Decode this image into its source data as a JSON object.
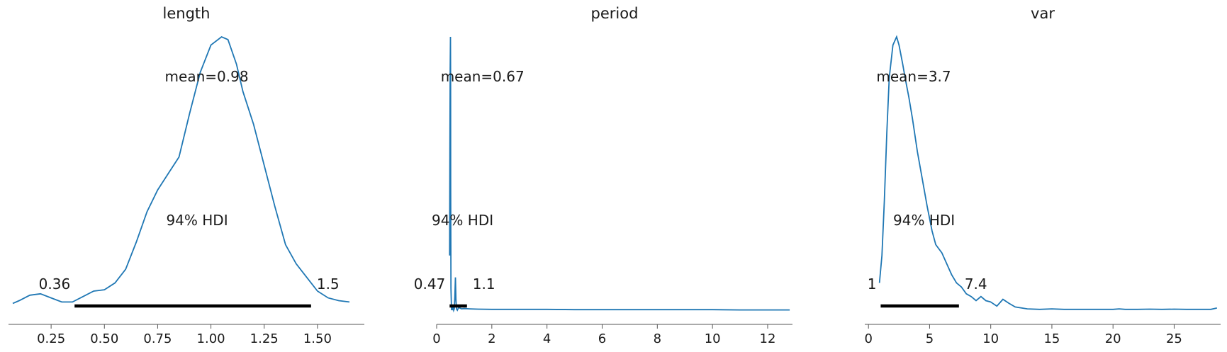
{
  "chart_data": [
    {
      "type": "line",
      "title": "length",
      "xlim": [
        0.05,
        1.72
      ],
      "ylim": [
        0,
        1.0
      ],
      "x_ticks": [
        0.25,
        0.5,
        0.75,
        1.0,
        1.25,
        1.5
      ],
      "x_tick_labels": [
        "0.25",
        "0.50",
        "0.75",
        "1.00",
        "1.25",
        "1.50"
      ],
      "series": [
        {
          "x": [
            0.07,
            0.1,
            0.15,
            0.2,
            0.25,
            0.3,
            0.35,
            0.4,
            0.45,
            0.5,
            0.55,
            0.6,
            0.65,
            0.7,
            0.75,
            0.8,
            0.85,
            0.9,
            0.95,
            1.0,
            1.05,
            1.08,
            1.12,
            1.15,
            1.2,
            1.25,
            1.3,
            1.35,
            1.4,
            1.45,
            1.5,
            1.55,
            1.6,
            1.65
          ],
          "y": [
            0.025,
            0.035,
            0.055,
            0.06,
            0.045,
            0.03,
            0.03,
            0.05,
            0.07,
            0.075,
            0.1,
            0.15,
            0.25,
            0.36,
            0.44,
            0.5,
            0.56,
            0.72,
            0.87,
            0.97,
            1.0,
            0.99,
            0.9,
            0.8,
            0.68,
            0.53,
            0.38,
            0.24,
            0.17,
            0.12,
            0.07,
            0.045,
            0.035,
            0.03
          ]
        }
      ],
      "mean_label": "mean=0.98",
      "hdi_label": "94% HDI",
      "hdi": [
        0.36,
        1.47
      ],
      "hdi_low_label": "0.36",
      "hdi_high_label": "1.5"
    },
    {
      "type": "line",
      "title": "period",
      "xlim": [
        0,
        12.9
      ],
      "ylim": [
        0,
        1.0
      ],
      "x_ticks": [
        0,
        2,
        4,
        6,
        8,
        10,
        12
      ],
      "x_tick_labels": [
        "0",
        "2",
        "4",
        "6",
        "8",
        "10",
        "12"
      ],
      "series": [
        {
          "x": [
            0.47,
            0.48,
            0.49,
            0.5,
            0.505,
            0.51,
            0.52,
            0.54,
            0.56,
            0.58,
            0.6,
            0.62,
            0.64,
            0.66,
            0.68,
            0.7,
            0.72,
            0.75,
            0.8,
            0.9,
            1.0,
            1.2,
            1.5,
            2.0,
            3.0,
            4.0,
            5.0,
            6.0,
            7.0,
            8.0,
            9.0,
            10.0,
            11.0,
            12.0,
            12.8
          ],
          "y": [
            0.2,
            0.6,
            0.88,
            1.0,
            0.85,
            0.45,
            0.08,
            0.0,
            0.02,
            0.0,
            0.015,
            0.0,
            0.005,
            0.05,
            0.12,
            0.04,
            0.005,
            0.0,
            0.01,
            0.005,
            0.006,
            0.005,
            0.004,
            0.003,
            0.003,
            0.003,
            0.002,
            0.002,
            0.002,
            0.002,
            0.002,
            0.002,
            0.001,
            0.001,
            0.001
          ]
        }
      ],
      "mean_label": "mean=0.67",
      "hdi_label": "94% HDI",
      "hdi": [
        0.47,
        1.1
      ],
      "hdi_low_label": "0.47",
      "hdi_high_label": "1.1"
    },
    {
      "type": "line",
      "title": "var",
      "xlim": [
        -0.3,
        28.8
      ],
      "ylim": [
        0,
        1.0
      ],
      "x_ticks": [
        0,
        5,
        10,
        15,
        20,
        25
      ],
      "x_tick_labels": [
        "0",
        "5",
        "10",
        "15",
        "20",
        "25"
      ],
      "series": [
        {
          "x": [
            0.9,
            1.1,
            1.3,
            1.5,
            1.7,
            2.0,
            2.3,
            2.5,
            2.8,
            3.0,
            3.3,
            3.6,
            4.0,
            4.4,
            4.8,
            5.2,
            5.5,
            6.0,
            6.4,
            6.8,
            7.2,
            7.6,
            8.0,
            8.4,
            8.8,
            9.2,
            9.6,
            10.0,
            10.5,
            11.0,
            11.5,
            12.0,
            13.0,
            14.0,
            15.0,
            16.0,
            18.0,
            20.0,
            20.5,
            21.0,
            22.0,
            23.0,
            24.0,
            25.0,
            26.0,
            27.0,
            28.0,
            28.5
          ],
          "y": [
            0.1,
            0.2,
            0.4,
            0.65,
            0.85,
            0.97,
            1.0,
            0.97,
            0.9,
            0.85,
            0.78,
            0.7,
            0.58,
            0.48,
            0.38,
            0.29,
            0.24,
            0.21,
            0.17,
            0.13,
            0.1,
            0.085,
            0.06,
            0.05,
            0.035,
            0.05,
            0.035,
            0.03,
            0.015,
            0.04,
            0.025,
            0.012,
            0.005,
            0.003,
            0.005,
            0.003,
            0.003,
            0.003,
            0.005,
            0.003,
            0.003,
            0.004,
            0.003,
            0.004,
            0.003,
            0.003,
            0.003,
            0.008
          ]
        }
      ],
      "mean_label": "mean=3.7",
      "hdi_label": "94% HDI",
      "hdi": [
        1.0,
        7.4
      ],
      "hdi_low_label": "1",
      "hdi_high_label": "7.4"
    }
  ]
}
